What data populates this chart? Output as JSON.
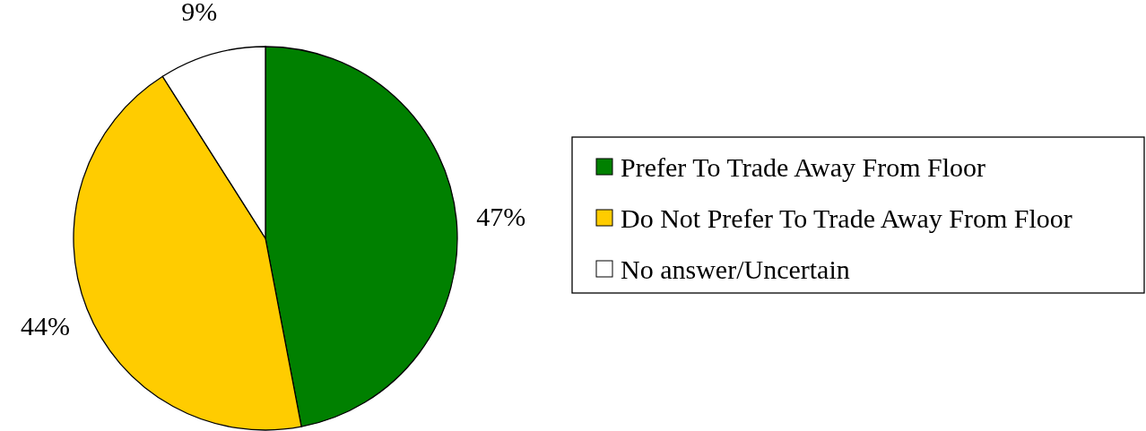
{
  "chart_data": {
    "type": "pie",
    "categories": [
      "Prefer To Trade Away From Floor",
      "Do Not Prefer To Trade Away From Floor",
      "No answer/Uncertain"
    ],
    "values": [
      47,
      44,
      9
    ],
    "colors": [
      "#008000",
      "#ffcc00",
      "#ffffff"
    ],
    "value_labels": [
      "47%",
      "44%",
      "9%"
    ],
    "legend": "right"
  }
}
